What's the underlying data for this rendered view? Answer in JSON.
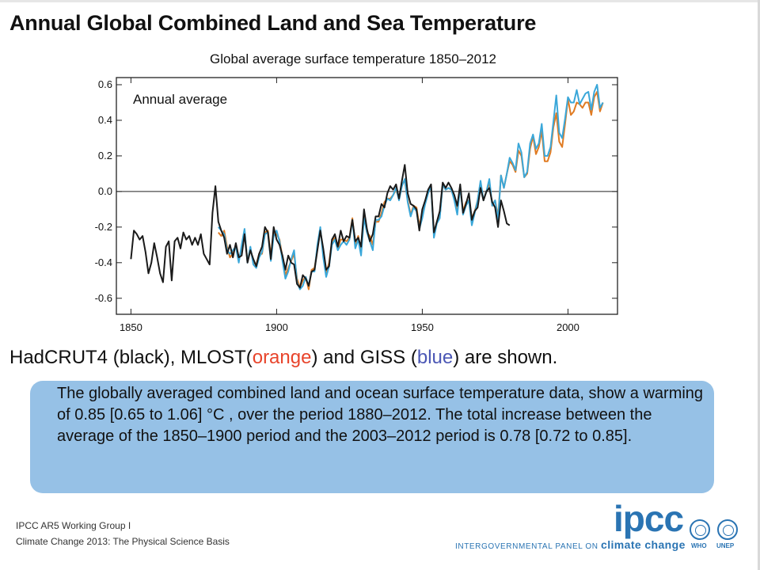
{
  "slide_title": "Annual Global Combined Land and Sea Temperature",
  "chart_data": {
    "type": "line",
    "title": "Global average surface temperature 1850–2012",
    "annotation": "Annual average",
    "xlim": [
      1845,
      2017
    ],
    "ylim": [
      -0.69,
      0.64
    ],
    "x_ticks": [
      1850,
      1900,
      1950,
      2000
    ],
    "y_ticks": [
      0.6,
      0.4,
      0.2,
      0.0,
      -0.2,
      -0.4,
      -0.6
    ],
    "x_tick_labels": [
      "1850",
      "1900",
      "1950",
      "2000"
    ],
    "y_tick_labels": [
      "0.6",
      "0.4",
      "0.2",
      "0.0",
      "-0.2",
      "-0.4",
      "-0.6"
    ],
    "reference_line": 0.0,
    "series": [
      {
        "color": "#1a1a1a",
        "x_start": 1850,
        "values": [
          -0.38,
          -0.22,
          -0.24,
          -0.27,
          -0.25,
          -0.34,
          -0.46,
          -0.4,
          -0.29,
          -0.37,
          -0.46,
          -0.51,
          -0.31,
          -0.28,
          -0.5,
          -0.28,
          -0.26,
          -0.32,
          -0.23,
          -0.27,
          -0.25,
          -0.3,
          -0.26,
          -0.3,
          -0.24,
          -0.35,
          -0.38,
          -0.41,
          -0.12,
          0.03,
          -0.17,
          -0.22,
          -0.26,
          -0.35,
          -0.3,
          -0.37,
          -0.29,
          -0.37,
          -0.36,
          -0.24,
          -0.4,
          -0.33,
          -0.38,
          -0.42,
          -0.35,
          -0.31,
          -0.2,
          -0.23,
          -0.38,
          -0.2,
          -0.27,
          -0.3,
          -0.36,
          -0.44,
          -0.36,
          -0.4,
          -0.41,
          -0.52,
          -0.54,
          -0.47,
          -0.49,
          -0.53,
          -0.45,
          -0.44,
          -0.33,
          -0.22,
          -0.32,
          -0.44,
          -0.42,
          -0.27,
          -0.24,
          -0.31,
          -0.22,
          -0.28,
          -0.25,
          -0.26,
          -0.16,
          -0.28,
          -0.26,
          -0.31,
          -0.1,
          -0.21,
          -0.28,
          -0.24,
          -0.14,
          -0.14,
          -0.07,
          -0.09,
          -0.01,
          0.03,
          0.01,
          0.04,
          -0.04,
          0.06,
          0.15,
          -0.01,
          -0.07,
          -0.08,
          -0.1,
          -0.22,
          -0.1,
          -0.05,
          0.01,
          0.04,
          -0.23,
          -0.17,
          -0.11,
          0.05,
          0.02,
          0.05,
          0.02,
          -0.02,
          -0.08,
          0.04,
          -0.12,
          -0.07,
          -0.01,
          -0.16,
          -0.11,
          -0.09,
          0.02,
          -0.05,
          0.0,
          0.02,
          -0.06,
          -0.09,
          -0.2,
          -0.05,
          -0.11,
          -0.18,
          -0.19
        ],
        "_comment": "HadCRUT4"
      },
      {
        "color": "#e07b22",
        "x_start": 1880,
        "values": [
          -0.23,
          -0.25,
          -0.22,
          -0.31,
          -0.37,
          -0.35,
          -0.3,
          -0.37,
          -0.33,
          -0.22,
          -0.39,
          -0.32,
          -0.4,
          -0.41,
          -0.35,
          -0.35,
          -0.23,
          -0.22,
          -0.36,
          -0.23,
          -0.24,
          -0.27,
          -0.37,
          -0.47,
          -0.43,
          -0.39,
          -0.35,
          -0.49,
          -0.54,
          -0.5,
          -0.48,
          -0.55,
          -0.44,
          -0.43,
          -0.32,
          -0.21,
          -0.35,
          -0.46,
          -0.4,
          -0.28,
          -0.26,
          -0.32,
          -0.27,
          -0.27,
          -0.28,
          -0.26,
          -0.15,
          -0.3,
          -0.25,
          -0.34,
          -0.13,
          -0.23,
          -0.25,
          -0.3,
          -0.17,
          -0.17,
          -0.12,
          -0.06,
          -0.04,
          -0.04,
          -0.02,
          0.01,
          -0.04,
          0.04,
          0.06,
          -0.05,
          -0.13,
          -0.08,
          -0.09,
          -0.19,
          -0.13,
          -0.06,
          0.0,
          0.03,
          -0.24,
          -0.17,
          -0.14,
          0.04,
          0.01,
          0.02,
          0.01,
          -0.04,
          -0.1,
          0.02,
          -0.11,
          -0.06,
          -0.05,
          -0.15,
          -0.11,
          -0.05,
          0.05,
          -0.05,
          0.0,
          0.05,
          -0.08,
          -0.05,
          -0.14,
          0.09,
          0.02,
          0.1,
          0.17,
          0.15,
          0.11,
          0.23,
          0.2,
          0.08,
          0.1,
          0.24,
          0.31,
          0.21,
          0.25,
          0.34,
          0.17,
          0.17,
          0.22,
          0.36,
          0.44,
          0.28,
          0.25,
          0.38,
          0.52,
          0.43,
          0.45,
          0.5,
          0.49,
          0.47,
          0.5,
          0.5,
          0.43,
          0.53,
          0.56,
          0.45,
          0.5
        ],
        "_comment": "MLOST"
      },
      {
        "color": "#3aa7d9",
        "x_start": 1880,
        "values": [
          -0.2,
          -0.22,
          -0.24,
          -0.33,
          -0.35,
          -0.33,
          -0.31,
          -0.4,
          -0.3,
          -0.21,
          -0.4,
          -0.31,
          -0.41,
          -0.43,
          -0.37,
          -0.34,
          -0.24,
          -0.23,
          -0.39,
          -0.25,
          -0.22,
          -0.28,
          -0.39,
          -0.49,
          -0.45,
          -0.38,
          -0.33,
          -0.51,
          -0.55,
          -0.53,
          -0.48,
          -0.53,
          -0.45,
          -0.45,
          -0.3,
          -0.2,
          -0.37,
          -0.48,
          -0.42,
          -0.3,
          -0.27,
          -0.33,
          -0.3,
          -0.28,
          -0.3,
          -0.27,
          -0.16,
          -0.32,
          -0.27,
          -0.36,
          -0.15,
          -0.23,
          -0.28,
          -0.33,
          -0.16,
          -0.16,
          -0.14,
          -0.08,
          -0.04,
          -0.05,
          -0.02,
          0.02,
          -0.05,
          0.03,
          0.07,
          -0.06,
          -0.14,
          -0.09,
          -0.11,
          -0.21,
          -0.15,
          -0.07,
          -0.01,
          0.03,
          -0.26,
          -0.18,
          -0.15,
          0.04,
          0.01,
          0.02,
          0.01,
          -0.05,
          -0.13,
          0.03,
          -0.13,
          -0.08,
          -0.05,
          -0.19,
          -0.12,
          -0.05,
          0.06,
          -0.05,
          0.0,
          0.07,
          -0.08,
          -0.05,
          -0.16,
          0.09,
          0.02,
          0.1,
          0.19,
          0.16,
          0.12,
          0.27,
          0.22,
          0.08,
          0.11,
          0.27,
          0.32,
          0.24,
          0.27,
          0.38,
          0.2,
          0.2,
          0.25,
          0.39,
          0.54,
          0.33,
          0.3,
          0.41,
          0.53,
          0.5,
          0.5,
          0.57,
          0.49,
          0.52,
          0.55,
          0.56,
          0.46,
          0.56,
          0.6,
          0.47,
          0.5
        ],
        "_comment": "GISS"
      }
    ]
  },
  "legend_text": {
    "prefix": "HadCRUT4 (black), MLOST(",
    "orange": "orange",
    "middle": ") and GISS (",
    "blue": "blue",
    "suffix": ") are shown."
  },
  "summary": "The globally averaged combined land and ocean surface temperature data, show a warming of 0.85 [0.65 to 1.06] °C , over the period 1880–2012. The total increase between the average of the 1850–1900 period and the 2003–2012 period is 0.78 [0.72 to 0.85].",
  "footer": {
    "line1": "IPCC AR5 Working Group I",
    "line2": "Climate Change 2013:  The Physical Science Basis"
  },
  "logo": {
    "name": "ipcc",
    "sub_prefix": "INTERGOVERNMENTAL PANEL ON ",
    "sub_big": "climate change",
    "who": "WHO",
    "unep": "UNEP"
  }
}
